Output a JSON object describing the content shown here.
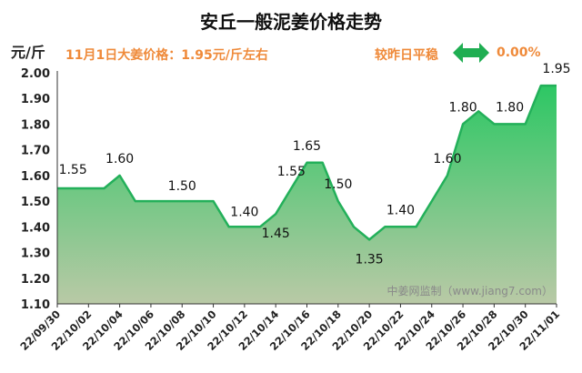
{
  "header": {
    "title": "安丘一般泥姜价格走势",
    "unit": "元/斤",
    "price_note": "11月1日大姜价格：1.95元/斤左右",
    "compare_label": "较昨日平稳",
    "change_pct": "0.00%"
  },
  "watermark": "中姜网监制（www.jiang7.com）",
  "icons": {
    "compare": "double-arrow-icon"
  },
  "colors": {
    "line": "#23b05a",
    "fill_top": "#2dc764",
    "fill_bottom": "#b9c9a6",
    "accent": "#ef8a3a",
    "axis": "#333333"
  },
  "chart_data": {
    "type": "area",
    "title": "安丘一般泥姜价格走势",
    "ylabel": "元/斤",
    "xlabel": "",
    "ylim": [
      1.1,
      2.0
    ],
    "yticks": [
      "2.00",
      "1.90",
      "1.80",
      "1.70",
      "1.60",
      "1.50",
      "1.40",
      "1.30",
      "1.20",
      "1.10"
    ],
    "x_tick_labels": [
      "22/09/30",
      "22/10/02",
      "22/10/04",
      "22/10/06",
      "22/10/08",
      "22/10/10",
      "22/10/12",
      "22/10/14",
      "22/10/16",
      "22/10/18",
      "22/10/20",
      "22/10/22",
      "22/10/24",
      "22/10/26",
      "22/10/28",
      "22/10/30",
      "22/11/01"
    ],
    "x": [
      "22/09/30",
      "22/10/01",
      "22/10/02",
      "22/10/03",
      "22/10/04",
      "22/10/05",
      "22/10/06",
      "22/10/07",
      "22/10/08",
      "22/10/09",
      "22/10/10",
      "22/10/11",
      "22/10/12",
      "22/10/13",
      "22/10/14",
      "22/10/15",
      "22/10/16",
      "22/10/17",
      "22/10/18",
      "22/10/19",
      "22/10/20",
      "22/10/21",
      "22/10/22",
      "22/10/23",
      "22/10/24",
      "22/10/25",
      "22/10/26",
      "22/10/27",
      "22/10/28",
      "22/10/29",
      "22/10/30",
      "22/10/31",
      "22/11/01"
    ],
    "values": [
      1.55,
      1.55,
      1.55,
      1.55,
      1.6,
      1.5,
      1.5,
      1.5,
      1.5,
      1.5,
      1.5,
      1.4,
      1.4,
      1.4,
      1.45,
      1.55,
      1.65,
      1.65,
      1.5,
      1.4,
      1.35,
      1.4,
      1.4,
      1.4,
      1.5,
      1.6,
      1.8,
      1.85,
      1.8,
      1.8,
      1.8,
      1.95,
      1.95
    ],
    "data_labels": [
      {
        "index": 1,
        "text": "1.55"
      },
      {
        "index": 4,
        "text": "1.60"
      },
      {
        "index": 8,
        "text": "1.50"
      },
      {
        "index": 12,
        "text": "1.40"
      },
      {
        "index": 14,
        "text": "1.45"
      },
      {
        "index": 15,
        "text": "1.55"
      },
      {
        "index": 16,
        "text": "1.65"
      },
      {
        "index": 18,
        "text": "1.50"
      },
      {
        "index": 20,
        "text": "1.35"
      },
      {
        "index": 22,
        "text": "1.40"
      },
      {
        "index": 25,
        "text": "1.60"
      },
      {
        "index": 26,
        "text": "1.80"
      },
      {
        "index": 29,
        "text": "1.80"
      },
      {
        "index": 32,
        "text": "1.95"
      }
    ],
    "grid": false,
    "legend": "none"
  }
}
